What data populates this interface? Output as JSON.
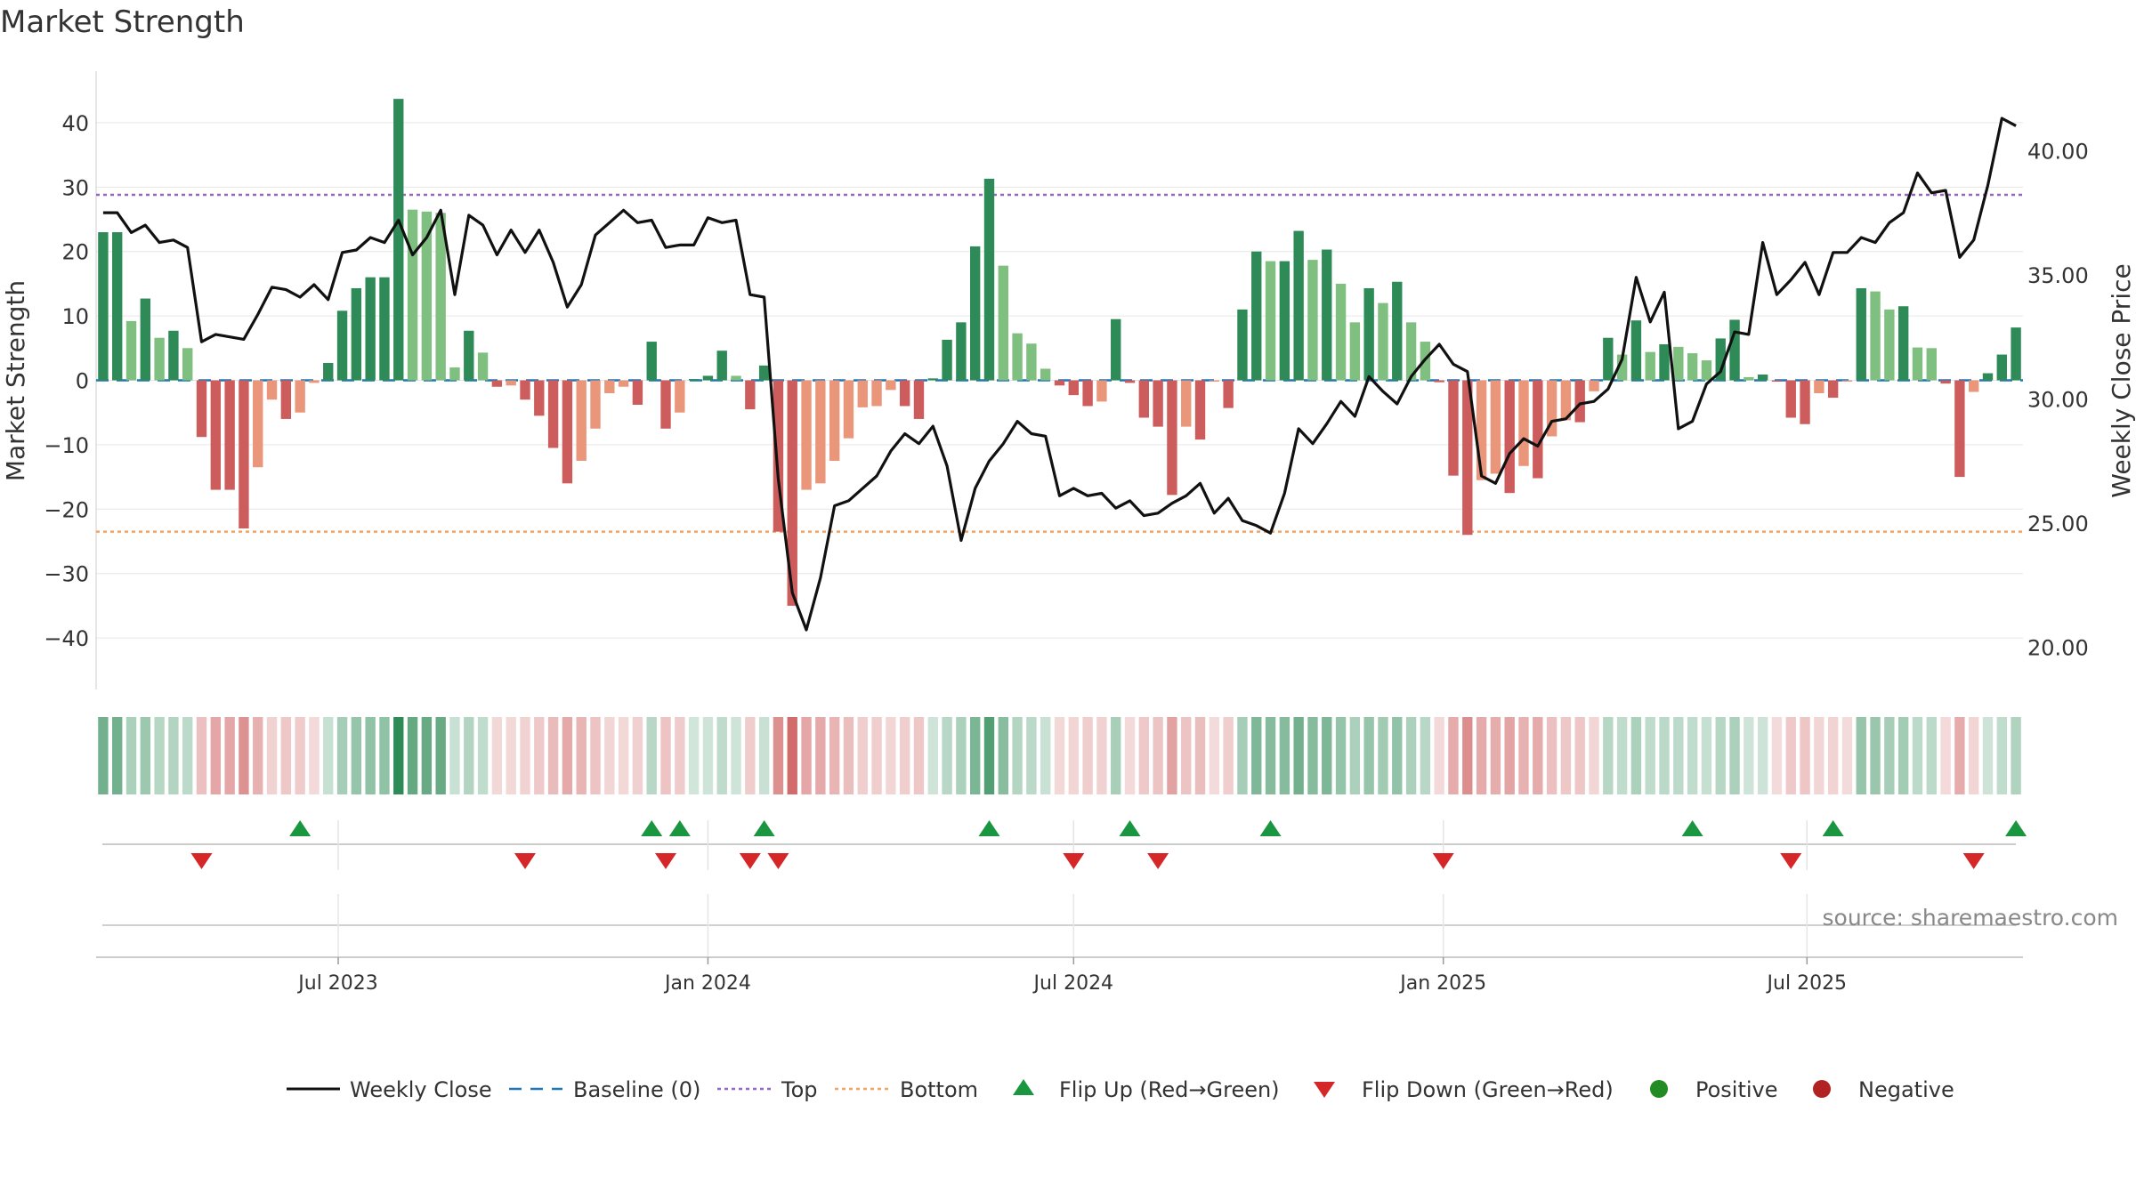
{
  "chart_data": {
    "type": "bar",
    "title": "Market Strength",
    "source_note": "source: sharemaestro.com",
    "left_axis": {
      "label": "Market Strength",
      "ylim": [
        -48,
        48
      ],
      "ticks": [
        40,
        30,
        20,
        10,
        0,
        -10,
        -20,
        -30,
        -40
      ],
      "tick_labels": [
        "40",
        "30",
        "20",
        "10",
        "0",
        "−10",
        "−20",
        "−30",
        "−40"
      ]
    },
    "right_axis": {
      "label": "Weekly Close Price",
      "ylim": [
        18.3,
        43.2
      ],
      "ticks": [
        40,
        35,
        30,
        25,
        20
      ],
      "tick_labels": [
        "40.00",
        "35.00",
        "30.00",
        "25.00",
        "20.00"
      ]
    },
    "x_axis": {
      "start": "2023-03-06",
      "end": "2025-10-13",
      "ticks": [
        "2023-07-01",
        "2024-01-01",
        "2024-07-01",
        "2025-01-01",
        "2025-07-01"
      ],
      "tick_labels": [
        "Jul 2023",
        "Jan 2024",
        "Jul 2024",
        "Jan 2025",
        "Jul 2025"
      ]
    },
    "grid": true,
    "top_level": 28.8,
    "bottom_level": -23.5,
    "baseline": 0,
    "strength_values": [
      23,
      23,
      9.2,
      12.7,
      6.6,
      7.7,
      5,
      -8.8,
      -17,
      -17,
      -23,
      -13.5,
      -3,
      -6,
      -5,
      -0.4,
      2.7,
      10.8,
      14.3,
      16,
      16,
      43.7,
      26.5,
      26.2,
      26,
      2,
      7.7,
      4.3,
      -1,
      -0.8,
      -3,
      -5.5,
      -10.5,
      -16,
      -12.5,
      -7.5,
      -2,
      -1,
      -3.8,
      6,
      -7.5,
      -5,
      0.2,
      0.7,
      4.6,
      0.7,
      -4.5,
      2.3,
      -23.5,
      -35,
      -17,
      -16,
      -12.5,
      -9,
      -4.2,
      -4,
      -1.5,
      -4,
      -6,
      0.3,
      6.3,
      9,
      20.8,
      31.3,
      17.8,
      7.3,
      5.7,
      1.8,
      -0.8,
      -2.3,
      -4,
      -3.3,
      9.5,
      -0.4,
      -5.8,
      -7.2,
      -17.8,
      -7.2,
      -9.2,
      -0.2,
      -4.3,
      11,
      20,
      18.5,
      18.5,
      23.2,
      18.7,
      20.3,
      15,
      9,
      14.3,
      12,
      15.3,
      9,
      6,
      -0.3,
      -14.8,
      -24,
      -15.5,
      -14.5,
      -17.5,
      -13.3,
      -15.2,
      -8.7,
      -6.2,
      -6.5,
      -1.7,
      6.6,
      4,
      9.3,
      4.4,
      5.6,
      5.2,
      4.2,
      3.1,
      6.5,
      9.4,
      0.5,
      0.9,
      -0.2,
      -5.8,
      -6.8,
      -2,
      -2.7,
      -0.2,
      14.3,
      13.8,
      11,
      11.5,
      5.1,
      5,
      -0.5,
      -15,
      -1.8,
      1.1,
      4,
      8.2
    ],
    "close_values": [
      37.5,
      37.5,
      36.7,
      37,
      36.3,
      36.4,
      36.1,
      32.3,
      32.6,
      32.5,
      32.4,
      33.4,
      34.5,
      34.4,
      34.1,
      34.6,
      34,
      35.9,
      36,
      36.5,
      36.3,
      37.2,
      35.8,
      36.5,
      37.6,
      34.2,
      37.4,
      37,
      35.8,
      36.8,
      35.9,
      36.8,
      35.5,
      33.7,
      34.6,
      36.6,
      37.1,
      37.6,
      37.1,
      37.2,
      36.1,
      36.2,
      36.2,
      37.3,
      37.1,
      37.2,
      34.2,
      34.1,
      26.8,
      22.2,
      20.7,
      22.8,
      25.7,
      25.9,
      26.4,
      26.9,
      27.9,
      28.6,
      28.2,
      28.9,
      27.3,
      24.3,
      26.4,
      27.5,
      28.2,
      29.1,
      28.6,
      28.5,
      26.1,
      26.4,
      26.1,
      26.2,
      25.6,
      25.9,
      25.3,
      25.4,
      25.8,
      26.1,
      26.6,
      25.4,
      26,
      25.1,
      24.9,
      24.6,
      26.2,
      28.8,
      28.2,
      29,
      29.9,
      29.3,
      30.9,
      30.3,
      29.8,
      30.9,
      31.6,
      32.2,
      31.4,
      31.1,
      26.9,
      26.6,
      27.8,
      28.4,
      28.1,
      29.1,
      29.2,
      29.8,
      29.9,
      30.4,
      31.6,
      34.9,
      33.1,
      34.3,
      28.8,
      29.1,
      30.6,
      31.1,
      32.7,
      32.6,
      36.3,
      34.2,
      34.8,
      35.5,
      34.2,
      35.9,
      35.9,
      36.5,
      36.3,
      37.1,
      37.5,
      39.1,
      38.3,
      38.4,
      35.7,
      36.4,
      38.6,
      41.3,
      41.0
    ],
    "flip_up_dates": [
      "2023-06-12",
      "2023-12-04",
      "2023-12-18",
      "2024-01-29",
      "2024-05-20",
      "2024-07-29",
      "2024-10-07",
      "2025-05-05",
      "2025-07-14",
      "2025-10-13"
    ],
    "flip_down_dates": [
      "2023-04-24",
      "2023-10-02",
      "2023-12-11",
      "2024-01-22",
      "2024-02-05",
      "2024-07-01",
      "2024-08-12",
      "2025-01-01",
      "2025-06-23",
      "2025-09-22"
    ],
    "legend_position": "bottom",
    "legend": [
      "Weekly Close",
      "Baseline (0)",
      "Top",
      "Bottom",
      "Flip Up (Red→Green)",
      "Flip Down (Green→Red)",
      "Positive",
      "Negative"
    ]
  },
  "colors": {
    "strong_positive": "#2e8b57",
    "weak_positive": "#7fbf7f",
    "strong_negative": "#cd5c5c",
    "weak_negative": "#e9967a",
    "close_line": "#111111",
    "baseline": "#1f77b4",
    "top": "#9467bd",
    "bottom": "#f4a460",
    "flip_up": "#1a9641",
    "flip_down": "#d62728",
    "positive_dot": "#228b22",
    "negative_dot": "#b22222"
  }
}
